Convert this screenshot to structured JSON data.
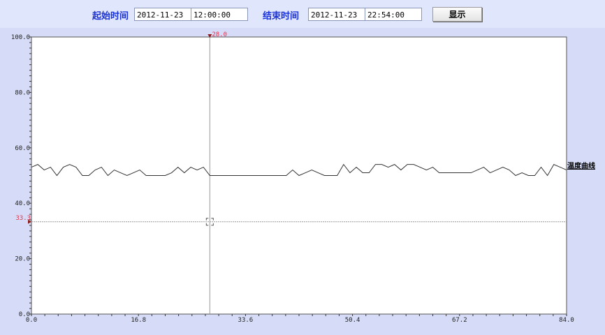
{
  "toolbar": {
    "start_label": "起始时间",
    "start_date": "2012-11-23",
    "start_time": "12:00:00",
    "end_label": "结束时间",
    "end_date": "2012-11-23",
    "end_time": "22:54:00",
    "show_button": "显示"
  },
  "chart_data": {
    "type": "line",
    "xlim": [
      0,
      84
    ],
    "ylim": [
      0,
      100
    ],
    "x_ticks": [
      "0.0",
      "16.8",
      "33.6",
      "50.4",
      "67.2",
      "84.0"
    ],
    "y_ticks": [
      "0.0",
      "20.0",
      "40.0",
      "60.0",
      "80.0",
      "100.0"
    ],
    "grid": false,
    "series": [
      {
        "name": "温度曲线",
        "color": "#333333",
        "values": [
          53,
          54,
          52,
          53,
          50,
          53,
          54,
          53,
          50,
          50,
          52,
          53,
          50,
          52,
          51,
          50,
          51,
          52,
          50,
          50,
          50,
          50,
          51,
          53,
          51,
          53,
          52,
          53,
          50,
          50,
          50,
          50,
          50,
          50,
          50,
          50,
          50,
          50,
          50,
          50,
          50,
          52,
          50,
          51,
          52,
          51,
          50,
          50,
          50,
          54,
          51,
          53,
          51,
          51,
          54,
          54,
          53,
          54,
          52,
          54,
          54,
          53,
          52,
          53,
          51,
          51,
          51,
          51,
          51,
          51,
          52,
          53,
          51,
          52,
          53,
          52,
          50,
          51,
          50,
          50,
          53,
          50,
          54,
          53,
          52
        ]
      }
    ],
    "cursor": {
      "x": 28.0,
      "x_label": "28.0",
      "y": 33.3,
      "y_label": "33.3",
      "color": "#e8324a"
    }
  }
}
